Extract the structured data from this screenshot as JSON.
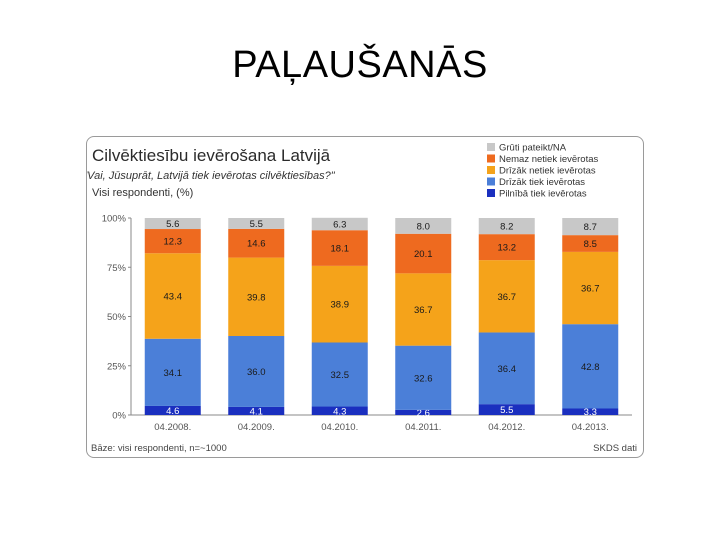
{
  "slide": {
    "title": "PAĻAUŠANĀS"
  },
  "chart_data": {
    "type": "bar",
    "stacked": true,
    "title": "Cilvēktiesību ievērošana Latvijā",
    "question": "Jautājums: \"Vai, Jūsuprāt, Latvijā tiek ievērotas cilvēktiesības?\"",
    "subtitle": "Visi respondenti, (%)",
    "categories": [
      "04.2008.",
      "04.2009.",
      "04.2010.",
      "04.2011.",
      "04.2012.",
      "04.2013."
    ],
    "series": [
      {
        "name": "Pilnībā tiek ievērotas",
        "color": "#1a2fbf",
        "values": [
          4.6,
          4.1,
          4.3,
          2.6,
          5.5,
          3.3
        ],
        "label_color": "#ffffff"
      },
      {
        "name": "Drīzāk tiek ievērotas",
        "color": "#4b7fd8",
        "values": [
          34.1,
          36.0,
          32.5,
          32.6,
          36.4,
          42.8
        ],
        "label_color": "#1a1a1a"
      },
      {
        "name": "Drīzāk netiek ievērotas",
        "color": "#f5a31a",
        "values": [
          43.4,
          39.8,
          38.9,
          36.7,
          36.7,
          36.7
        ],
        "label_color": "#1a1a1a"
      },
      {
        "name": "Nemaz netiek ievērotas",
        "color": "#ee6a1f",
        "values": [
          12.3,
          14.6,
          18.1,
          20.1,
          13.2,
          8.5
        ],
        "label_color": "#1a1a1a"
      },
      {
        "name": "Grūti pateikt/NA",
        "color": "#c8c8c8",
        "values": [
          5.6,
          5.5,
          6.3,
          8.0,
          8.2,
          8.7
        ],
        "label_color": "#1a1a1a"
      }
    ],
    "ytick_labels": [
      "0%",
      "25%",
      "50%",
      "75%",
      "100%"
    ],
    "ylim": [
      0,
      100
    ],
    "legend": "top-right",
    "footnote": "Bāze: visi respondenti, n=~1000",
    "source": "SKDS dati"
  }
}
